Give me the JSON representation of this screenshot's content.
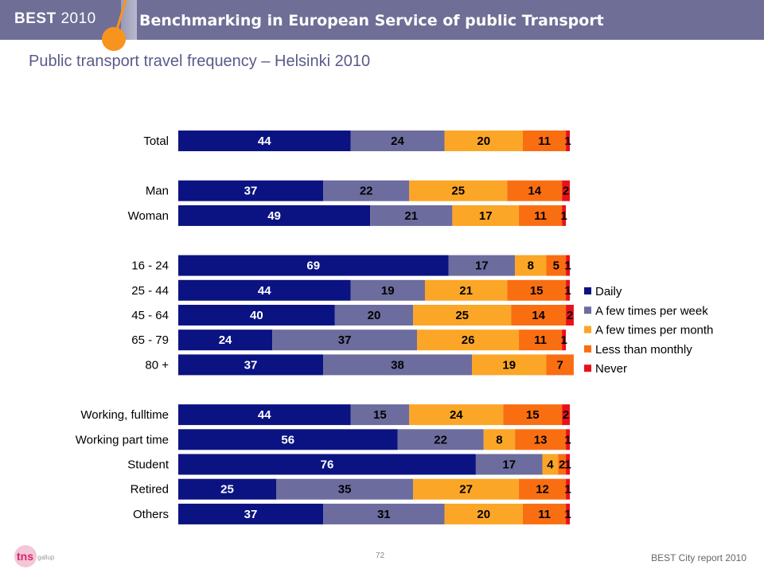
{
  "header": {
    "brand": "BEST",
    "brand_year": "2010",
    "title": "Benchmarking in European Service of public Transport"
  },
  "page_title": "Public transport travel frequency – Helsinki 2010",
  "footer": {
    "page_number": "72",
    "report": "BEST City report 2010",
    "logo_text": "tns",
    "logo_sub": "gallup"
  },
  "colors": {
    "Daily": "#0b1382",
    "A few times per week": "#6c6c9e",
    "A few times per month": "#fba627",
    "Less than monthly": "#fa6e12",
    "Never": "#ea1019",
    "header": "#6e6e96"
  },
  "chart_data": {
    "type": "bar",
    "orientation": "horizontal",
    "stacked": true,
    "xlim": [
      0,
      100
    ],
    "legend_position": "right",
    "groups": [
      [
        "Total"
      ],
      [
        "Man",
        "Woman"
      ],
      [
        "16 - 24",
        "25 - 44",
        "45 - 64",
        "65 - 79",
        "80 +"
      ],
      [
        "Working, fulltime",
        "Working part time",
        "Student",
        "Retired",
        "Others"
      ]
    ],
    "categories": [
      "Total",
      "Man",
      "Woman",
      "16 - 24",
      "25 - 44",
      "45 - 64",
      "65 - 79",
      "80 +",
      "Working, fulltime",
      "Working part time",
      "Student",
      "Retired",
      "Others"
    ],
    "series": [
      {
        "name": "Daily",
        "values": [
          44,
          37,
          49,
          69,
          44,
          40,
          24,
          37,
          44,
          56,
          76,
          25,
          37
        ]
      },
      {
        "name": "A few times per week",
        "values": [
          24,
          22,
          21,
          17,
          19,
          20,
          37,
          38,
          15,
          22,
          17,
          35,
          31
        ]
      },
      {
        "name": "A few times per month",
        "values": [
          20,
          25,
          17,
          8,
          21,
          25,
          26,
          19,
          24,
          8,
          4,
          27,
          20
        ]
      },
      {
        "name": "Less than monthly",
        "values": [
          11,
          14,
          11,
          5,
          15,
          14,
          11,
          7,
          15,
          13,
          2,
          12,
          11
        ]
      },
      {
        "name": "Never",
        "values": [
          1,
          2,
          1,
          1,
          1,
          2,
          1,
          0,
          2,
          1,
          1,
          1,
          1
        ]
      }
    ]
  }
}
